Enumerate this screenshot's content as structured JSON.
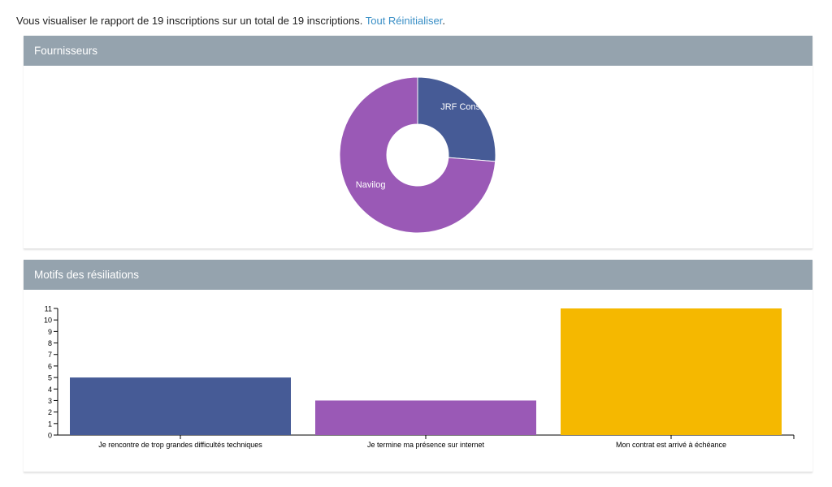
{
  "summary": {
    "text": "Vous visualiser le rapport de 19 inscriptions sur un total de 19 inscriptions.",
    "reset_label": "Tout Réinitialiser",
    "suffix": "."
  },
  "panels": {
    "suppliers_title": "Fournisseurs",
    "reasons_title": "Motifs des résiliations"
  },
  "colors": {
    "blue": "#465b96",
    "purple": "#9a59b6",
    "yellow": "#f5b800",
    "header": "#95a3ae",
    "link": "#3a8fc6"
  },
  "chart_data": [
    {
      "type": "pie",
      "title": "Fournisseurs",
      "donut": true,
      "slices": [
        {
          "label": "JRF Consultant",
          "value": 5,
          "color": "#465b96"
        },
        {
          "label": "Navilog",
          "value": 14,
          "color": "#9a59b6"
        }
      ]
    },
    {
      "type": "bar",
      "title": "Motifs des résiliations",
      "categories": [
        "Je rencontre de trop grandes difficultés techniques",
        "Je termine ma présence sur internet",
        "Mon contrat est arrivé à échéance"
      ],
      "values": [
        5,
        3,
        11
      ],
      "colors": [
        "#465b96",
        "#9a59b6",
        "#f5b800"
      ],
      "ylim": [
        0,
        11
      ],
      "yticks": [
        0,
        1,
        2,
        3,
        4,
        5,
        6,
        7,
        8,
        9,
        10,
        11
      ],
      "xlabel": "",
      "ylabel": "",
      "grid": false
    }
  ]
}
